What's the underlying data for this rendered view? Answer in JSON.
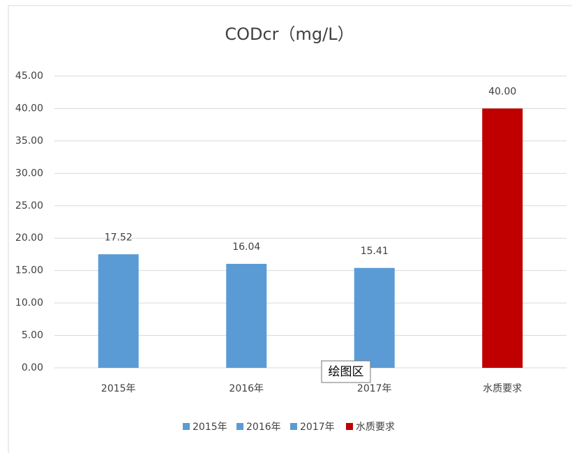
{
  "chart_data": {
    "type": "bar",
    "title": "CODcr（mg/L）",
    "categories": [
      "2015年",
      "2016年",
      "2017年",
      "水质要求"
    ],
    "values": [
      17.52,
      16.04,
      15.41,
      40.0
    ],
    "value_labels": [
      "17.52",
      "16.04",
      "15.41",
      "40.00"
    ],
    "colors": [
      "#5b9bd5",
      "#5b9bd5",
      "#5b9bd5",
      "#c00000"
    ],
    "ylim": [
      0,
      45
    ],
    "yticks": [
      {
        "value": 0,
        "label": "0.00"
      },
      {
        "value": 5,
        "label": "5.00"
      },
      {
        "value": 10,
        "label": "10.00"
      },
      {
        "value": 15,
        "label": "15.00"
      },
      {
        "value": 20,
        "label": "20.00"
      },
      {
        "value": 25,
        "label": "25.00"
      },
      {
        "value": 30,
        "label": "30.00"
      },
      {
        "value": 35,
        "label": "35.00"
      },
      {
        "value": 40,
        "label": "40.00"
      },
      {
        "value": 45,
        "label": "45.00"
      }
    ],
    "grid": true,
    "legend": "bottom",
    "tooltip": "绘图区"
  }
}
